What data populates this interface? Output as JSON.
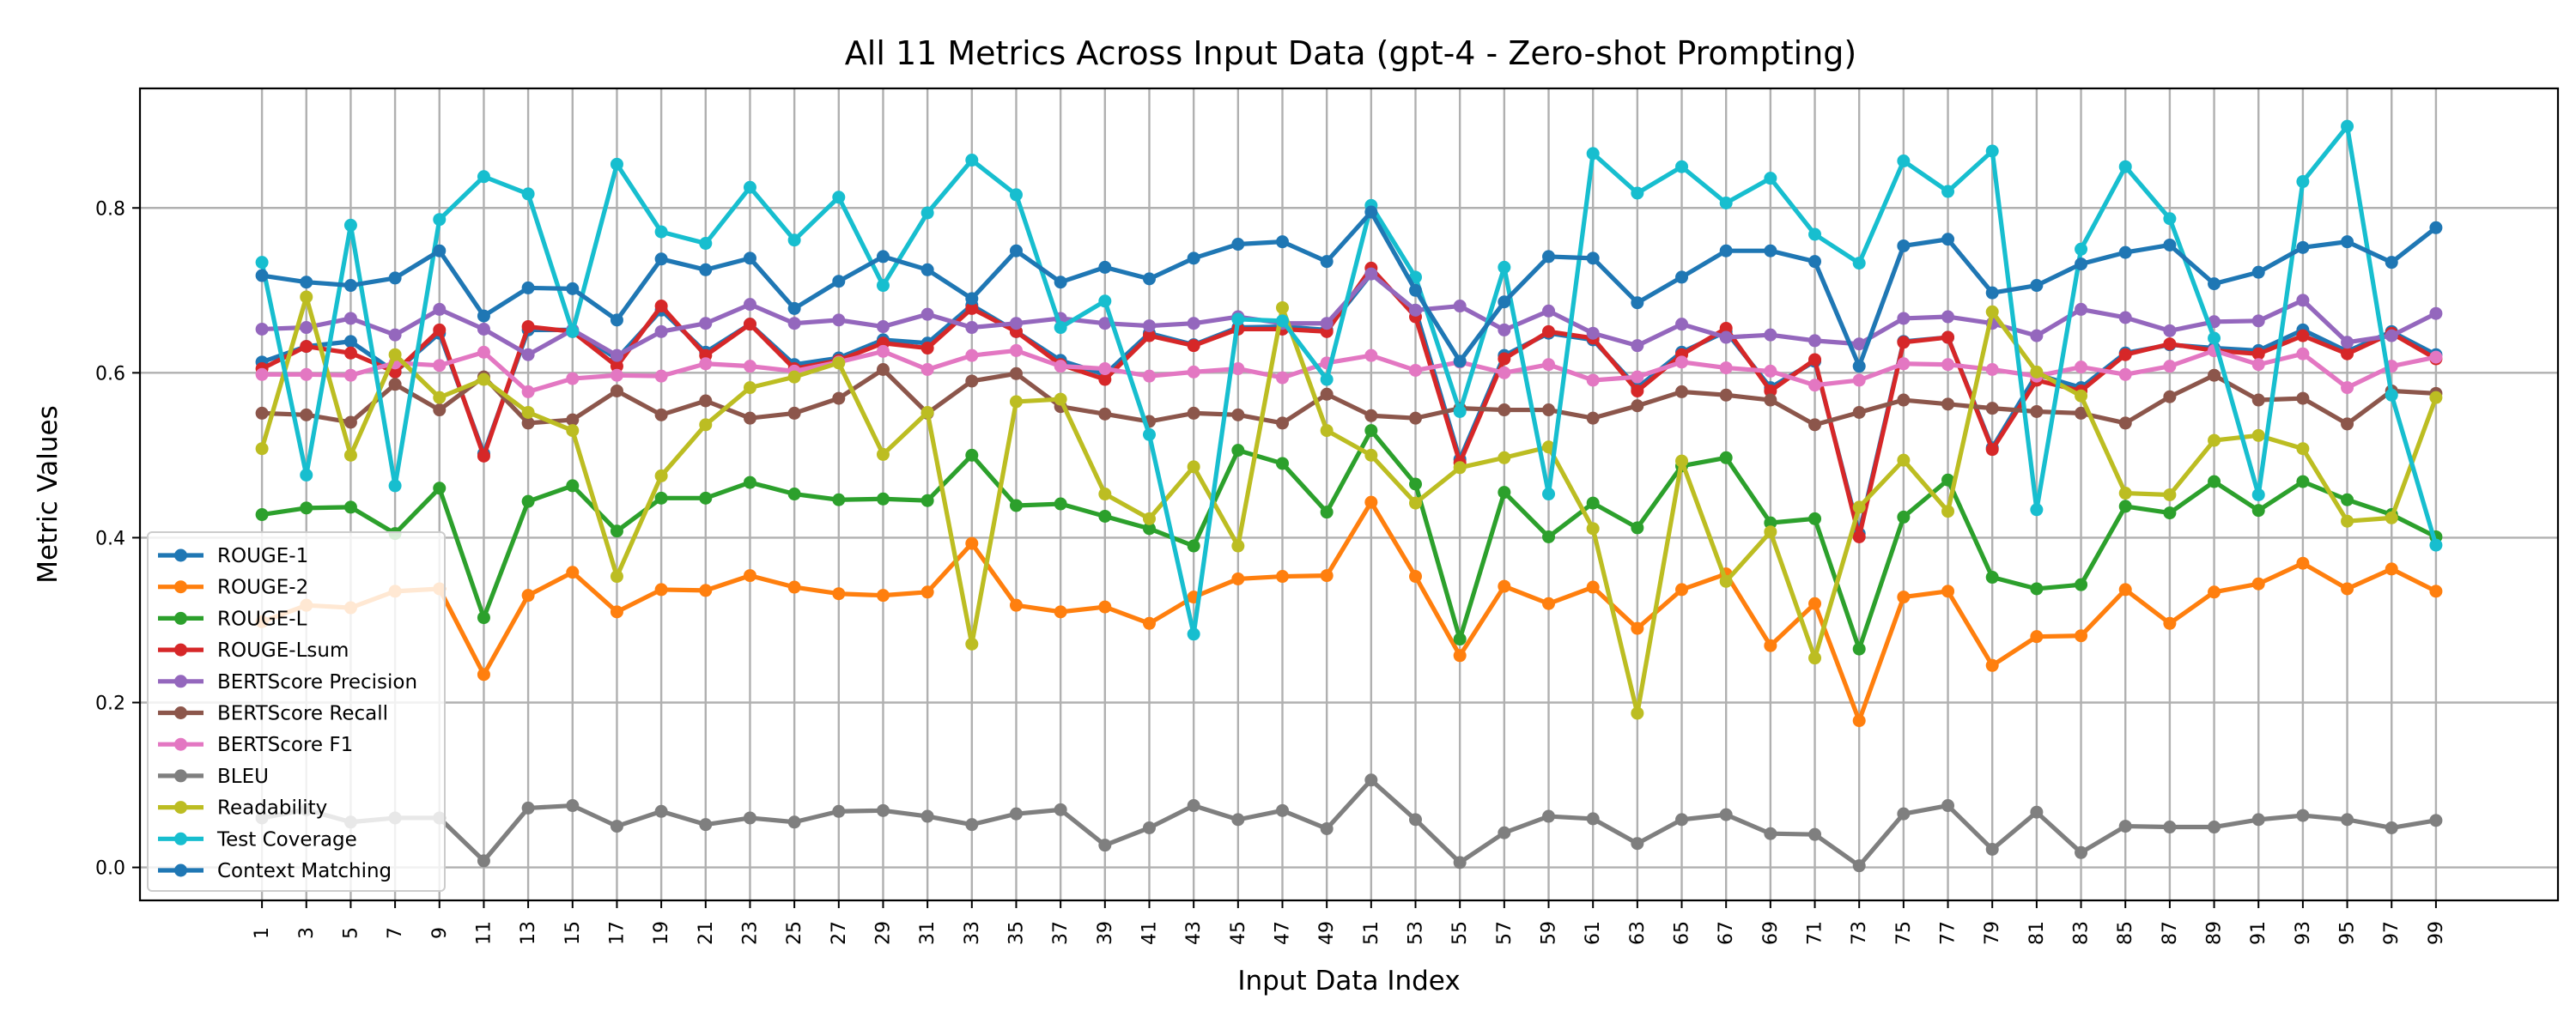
{
  "chart_data": {
    "type": "line",
    "title": "All 11 Metrics Across Input Data (gpt-4 - Zero-shot Prompting)",
    "xlabel": "Input Data Index",
    "ylabel": "Metric Values",
    "x": [
      1,
      3,
      5,
      7,
      9,
      11,
      13,
      15,
      17,
      19,
      21,
      23,
      25,
      27,
      29,
      31,
      33,
      35,
      37,
      39,
      41,
      43,
      45,
      47,
      49,
      51,
      53,
      55,
      57,
      59,
      61,
      63,
      65,
      67,
      69,
      71,
      73,
      75,
      77,
      79,
      81,
      83,
      85,
      87,
      89,
      91,
      93,
      95,
      97,
      99
    ],
    "xticks": [
      "1",
      "3",
      "5",
      "7",
      "9",
      "11",
      "13",
      "15",
      "17",
      "19",
      "21",
      "23",
      "25",
      "27",
      "29",
      "31",
      "33",
      "35",
      "37",
      "39",
      "41",
      "43",
      "45",
      "47",
      "49",
      "51",
      "53",
      "55",
      "57",
      "59",
      "61",
      "63",
      "65",
      "67",
      "69",
      "71",
      "73",
      "75",
      "77",
      "79",
      "81",
      "83",
      "85",
      "87",
      "89",
      "91",
      "93",
      "95",
      "97",
      "99"
    ],
    "xlim": [
      -4.5,
      104.5
    ],
    "yticks": [
      0.0,
      0.2,
      0.4,
      0.6,
      0.8
    ],
    "ytick_labels": [
      "0.0",
      "0.2",
      "0.4",
      "0.6",
      "0.8"
    ],
    "ylim": [
      -0.04,
      0.945
    ],
    "grid": true,
    "legend_position": "lower-left",
    "series": [
      {
        "name": "ROUGE-1",
        "color": "#1f77b4",
        "values": [
          0.613,
          0.632,
          0.638,
          0.601,
          0.648,
          0.502,
          0.652,
          0.652,
          0.617,
          0.676,
          0.625,
          0.659,
          0.61,
          0.618,
          0.64,
          0.636,
          0.682,
          0.65,
          0.615,
          0.598,
          0.648,
          0.634,
          0.655,
          0.656,
          0.652,
          0.72,
          0.676,
          0.495,
          0.621,
          0.648,
          0.64,
          0.582,
          0.625,
          0.65,
          0.582,
          0.614,
          0.405,
          0.638,
          0.643,
          0.509,
          0.598,
          0.582,
          0.624,
          0.634,
          0.63,
          0.627,
          0.652,
          0.626,
          0.65,
          0.622
        ]
      },
      {
        "name": "ROUGE-2",
        "color": "#ff7f0e",
        "values": [
          0.298,
          0.318,
          0.315,
          0.335,
          0.338,
          0.234,
          0.33,
          0.358,
          0.31,
          0.337,
          0.336,
          0.354,
          0.34,
          0.332,
          0.33,
          0.334,
          0.393,
          0.318,
          0.31,
          0.316,
          0.296,
          0.328,
          0.35,
          0.353,
          0.354,
          0.443,
          0.353,
          0.257,
          0.341,
          0.32,
          0.34,
          0.29,
          0.337,
          0.356,
          0.269,
          0.32,
          0.178,
          0.328,
          0.335,
          0.245,
          0.28,
          0.281,
          0.337,
          0.296,
          0.334,
          0.344,
          0.369,
          0.338,
          0.362,
          0.335
        ]
      },
      {
        "name": "ROUGE-L",
        "color": "#2ca02c",
        "values": [
          0.428,
          0.436,
          0.437,
          0.405,
          0.46,
          0.303,
          0.444,
          0.463,
          0.408,
          0.448,
          0.448,
          0.467,
          0.453,
          0.446,
          0.447,
          0.445,
          0.5,
          0.439,
          0.441,
          0.426,
          0.411,
          0.39,
          0.506,
          0.49,
          0.431,
          0.53,
          0.465,
          0.277,
          0.455,
          0.401,
          0.442,
          0.412,
          0.487,
          0.497,
          0.418,
          0.423,
          0.265,
          0.425,
          0.47,
          0.352,
          0.338,
          0.343,
          0.438,
          0.43,
          0.468,
          0.433,
          0.468,
          0.446,
          0.428,
          0.401
        ]
      },
      {
        "name": "ROUGE-Lsum",
        "color": "#d62728",
        "values": [
          0.605,
          0.632,
          0.624,
          0.601,
          0.652,
          0.499,
          0.656,
          0.65,
          0.608,
          0.681,
          0.621,
          0.659,
          0.605,
          0.615,
          0.636,
          0.63,
          0.678,
          0.65,
          0.61,
          0.592,
          0.645,
          0.633,
          0.653,
          0.653,
          0.65,
          0.727,
          0.668,
          0.491,
          0.617,
          0.65,
          0.642,
          0.578,
          0.622,
          0.654,
          0.578,
          0.616,
          0.401,
          0.637,
          0.643,
          0.507,
          0.591,
          0.578,
          0.622,
          0.635,
          0.627,
          0.623,
          0.645,
          0.623,
          0.648,
          0.617
        ]
      },
      {
        "name": "BERTScore Precision",
        "color": "#9467bd",
        "values": [
          0.653,
          0.655,
          0.666,
          0.646,
          0.677,
          0.653,
          0.622,
          0.652,
          0.621,
          0.65,
          0.66,
          0.683,
          0.66,
          0.664,
          0.656,
          0.671,
          0.655,
          0.66,
          0.666,
          0.66,
          0.657,
          0.66,
          0.668,
          0.66,
          0.66,
          0.72,
          0.676,
          0.681,
          0.652,
          0.675,
          0.648,
          0.633,
          0.659,
          0.643,
          0.646,
          0.639,
          0.635,
          0.666,
          0.668,
          0.66,
          0.645,
          0.677,
          0.667,
          0.651,
          0.662,
          0.663,
          0.688,
          0.637,
          0.645,
          0.672
        ]
      },
      {
        "name": "BERTScore Recall",
        "color": "#8c564b",
        "values": [
          0.551,
          0.549,
          0.54,
          0.586,
          0.555,
          0.595,
          0.539,
          0.543,
          0.578,
          0.549,
          0.566,
          0.545,
          0.551,
          0.569,
          0.604,
          0.551,
          0.59,
          0.599,
          0.559,
          0.55,
          0.541,
          0.551,
          0.549,
          0.539,
          0.574,
          0.548,
          0.545,
          0.557,
          0.555,
          0.555,
          0.545,
          0.56,
          0.577,
          0.573,
          0.567,
          0.537,
          0.552,
          0.567,
          0.562,
          0.557,
          0.553,
          0.551,
          0.539,
          0.571,
          0.597,
          0.567,
          0.569,
          0.538,
          0.578,
          0.575
        ]
      },
      {
        "name": "BERTScore F1",
        "color": "#e377c2",
        "values": [
          0.598,
          0.598,
          0.597,
          0.612,
          0.609,
          0.625,
          0.577,
          0.593,
          0.597,
          0.596,
          0.611,
          0.608,
          0.602,
          0.613,
          0.626,
          0.604,
          0.621,
          0.627,
          0.608,
          0.605,
          0.596,
          0.601,
          0.605,
          0.594,
          0.612,
          0.621,
          0.603,
          0.613,
          0.6,
          0.61,
          0.591,
          0.595,
          0.613,
          0.606,
          0.602,
          0.585,
          0.591,
          0.611,
          0.61,
          0.604,
          0.596,
          0.607,
          0.598,
          0.608,
          0.627,
          0.61,
          0.623,
          0.582,
          0.608,
          0.619
        ]
      },
      {
        "name": "BLEU",
        "color": "#7f7f7f",
        "values": [
          0.06,
          0.07,
          0.055,
          0.06,
          0.06,
          0.008,
          0.072,
          0.075,
          0.05,
          0.068,
          0.052,
          0.06,
          0.055,
          0.068,
          0.069,
          0.062,
          0.052,
          0.065,
          0.07,
          0.027,
          0.048,
          0.075,
          0.058,
          0.069,
          0.047,
          0.106,
          0.058,
          0.006,
          0.042,
          0.062,
          0.059,
          0.029,
          0.058,
          0.064,
          0.041,
          0.04,
          0.002,
          0.065,
          0.075,
          0.022,
          0.067,
          0.018,
          0.05,
          0.049,
          0.049,
          0.058,
          0.063,
          0.058,
          0.048,
          0.057
        ]
      },
      {
        "name": "Readability",
        "color": "#bcbd22",
        "values": [
          0.508,
          0.692,
          0.5,
          0.622,
          0.57,
          0.592,
          0.552,
          0.53,
          0.353,
          0.475,
          0.537,
          0.582,
          0.595,
          0.612,
          0.501,
          0.552,
          0.271,
          0.565,
          0.568,
          0.453,
          0.423,
          0.486,
          0.39,
          0.679,
          0.53,
          0.5,
          0.442,
          0.485,
          0.497,
          0.51,
          0.411,
          0.187,
          0.493,
          0.347,
          0.407,
          0.254,
          0.437,
          0.494,
          0.432,
          0.674,
          0.601,
          0.572,
          0.454,
          0.452,
          0.518,
          0.524,
          0.508,
          0.42,
          0.424,
          0.57
        ]
      },
      {
        "name": "Test Coverage",
        "color": "#17becf",
        "values": [
          0.734,
          0.476,
          0.779,
          0.463,
          0.786,
          0.838,
          0.817,
          0.65,
          0.853,
          0.771,
          0.757,
          0.825,
          0.761,
          0.813,
          0.706,
          0.794,
          0.858,
          0.816,
          0.655,
          0.687,
          0.525,
          0.283,
          0.665,
          0.663,
          0.592,
          0.803,
          0.716,
          0.553,
          0.728,
          0.453,
          0.866,
          0.818,
          0.85,
          0.806,
          0.836,
          0.768,
          0.733,
          0.857,
          0.82,
          0.869,
          0.434,
          0.75,
          0.85,
          0.787,
          0.642,
          0.452,
          0.832,
          0.899,
          0.573,
          0.391
        ]
      },
      {
        "name": "Context Matching",
        "color": "#1f77b4",
        "values": [
          0.718,
          0.71,
          0.706,
          0.715,
          0.748,
          0.669,
          0.703,
          0.702,
          0.664,
          0.738,
          0.725,
          0.739,
          0.678,
          0.711,
          0.741,
          0.725,
          0.69,
          0.748,
          0.71,
          0.728,
          0.714,
          0.739,
          0.756,
          0.759,
          0.735,
          0.795,
          0.7,
          0.614,
          0.686,
          0.741,
          0.739,
          0.685,
          0.716,
          0.748,
          0.748,
          0.735,
          0.608,
          0.754,
          0.762,
          0.697,
          0.706,
          0.732,
          0.746,
          0.755,
          0.708,
          0.722,
          0.752,
          0.759,
          0.734,
          0.776
        ]
      }
    ]
  }
}
